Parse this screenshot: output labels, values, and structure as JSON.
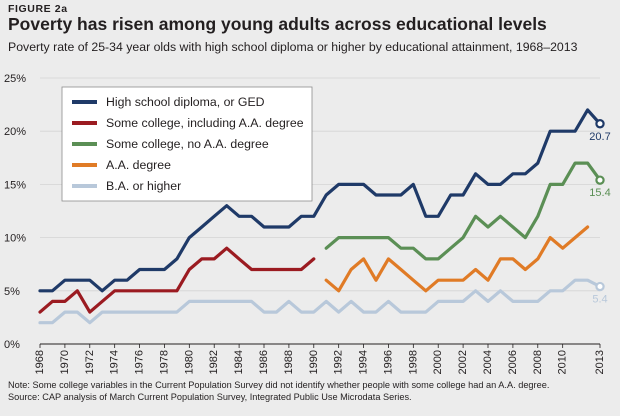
{
  "figure_label": "FIGURE 2a",
  "title": "Poverty has risen among young adults across educational levels",
  "subtitle": "Poverty rate of 25-34 year olds with high school diploma or higher by educational attainment, 1968–2013",
  "note": "Note: Some college variables in the Current Population Survey did not identify whether people with some college had an A.A. degree.",
  "source": "Source: CAP analysis of March Current Population Survey, Integrated Public Use Microdata Series.",
  "chart_data": {
    "type": "line",
    "title": "Poverty has risen among young adults across educational levels",
    "subtitle": "Poverty rate of 25-34 year olds with high school diploma or higher by educational attainment, 1968–2013",
    "xlabel": "",
    "ylabel": "",
    "xlim": [
      1968,
      2013
    ],
    "ylim": [
      0,
      25
    ],
    "x_ticks": [
      "1968",
      "1970",
      "1972",
      "1974",
      "1976",
      "1978",
      "1980",
      "1982",
      "1984",
      "1986",
      "1988",
      "1990",
      "1992",
      "1994",
      "1996",
      "1998",
      "2000",
      "2002",
      "2004",
      "2006",
      "2008",
      "2010",
      "2013"
    ],
    "y_ticks": [
      "0%",
      "5%",
      "10%",
      "15%",
      "20%",
      "25%"
    ],
    "grid": true,
    "legend_position": "top-left",
    "series": [
      {
        "name": "High school diploma, or GED",
        "color": "#1f3a68",
        "x": [
          1968,
          1969,
          1970,
          1971,
          1972,
          1973,
          1974,
          1975,
          1976,
          1977,
          1978,
          1979,
          1980,
          1981,
          1982,
          1983,
          1984,
          1985,
          1986,
          1987,
          1988,
          1989,
          1990,
          1991,
          1992,
          1993,
          1994,
          1995,
          1996,
          1997,
          1998,
          1999,
          2000,
          2001,
          2002,
          2003,
          2004,
          2005,
          2006,
          2007,
          2008,
          2009,
          2010,
          2011,
          2012,
          2013
        ],
        "values": [
          5,
          5,
          6,
          6,
          6,
          5,
          6,
          6,
          7,
          7,
          7,
          8,
          10,
          11,
          12,
          13,
          12,
          12,
          11,
          11,
          11,
          12,
          12,
          14,
          15,
          15,
          15,
          14,
          14,
          14,
          15,
          12,
          12,
          14,
          14,
          16,
          15,
          15,
          16,
          16,
          17,
          20,
          20,
          20,
          22,
          20.7
        ],
        "end_label": "20.7"
      },
      {
        "name": "Some college, including A.A. degree",
        "color": "#9b1b21",
        "x": [
          1968,
          1969,
          1970,
          1971,
          1972,
          1973,
          1974,
          1975,
          1976,
          1977,
          1978,
          1979,
          1980,
          1981,
          1982,
          1983,
          1984,
          1985,
          1986,
          1987,
          1988,
          1989,
          1990
        ],
        "values": [
          3,
          4,
          4,
          5,
          3,
          4,
          5,
          5,
          5,
          5,
          5,
          5,
          7,
          8,
          8,
          9,
          8,
          7,
          7,
          7,
          7,
          7,
          8
        ]
      },
      {
        "name": "Some college, no A.A. degree",
        "color": "#5b8f55",
        "x": [
          1991,
          1992,
          1993,
          1994,
          1995,
          1996,
          1997,
          1998,
          1999,
          2000,
          2001,
          2002,
          2003,
          2004,
          2005,
          2006,
          2007,
          2008,
          2009,
          2010,
          2011,
          2012,
          2013
        ],
        "values": [
          9,
          10,
          10,
          10,
          10,
          10,
          9,
          9,
          8,
          8,
          9,
          10,
          12,
          11,
          12,
          11,
          10,
          12,
          15,
          15,
          17,
          17,
          15.4
        ],
        "end_label": "15.4"
      },
      {
        "name": "A.A. degree",
        "color": "#e07b26",
        "x": [
          1991,
          1992,
          1993,
          1994,
          1995,
          1996,
          1997,
          1998,
          1999,
          2000,
          2001,
          2002,
          2003,
          2004,
          2005,
          2006,
          2007,
          2008,
          2009,
          2010,
          2011,
          2012
        ],
        "values": [
          6,
          5,
          7,
          8,
          6,
          8,
          7,
          6,
          5,
          6,
          6,
          6,
          7,
          6,
          8,
          8,
          7,
          8,
          10,
          9,
          10,
          11
        ]
      },
      {
        "name": "B.A. or higher",
        "color": "#b8c8da",
        "x": [
          1968,
          1969,
          1970,
          1971,
          1972,
          1973,
          1974,
          1975,
          1976,
          1977,
          1978,
          1979,
          1980,
          1981,
          1982,
          1983,
          1984,
          1985,
          1986,
          1987,
          1988,
          1989,
          1990,
          1991,
          1992,
          1993,
          1994,
          1995,
          1996,
          1997,
          1998,
          1999,
          2000,
          2001,
          2002,
          2003,
          2004,
          2005,
          2006,
          2007,
          2008,
          2009,
          2010,
          2011,
          2012,
          2013
        ],
        "values": [
          2,
          2,
          3,
          3,
          2,
          3,
          3,
          3,
          3,
          3,
          3,
          3,
          4,
          4,
          4,
          4,
          4,
          4,
          3,
          3,
          4,
          3,
          3,
          4,
          3,
          4,
          3,
          3,
          4,
          3,
          3,
          3,
          4,
          4,
          4,
          5,
          4,
          5,
          4,
          4,
          4,
          5,
          5,
          6,
          6,
          5.4
        ],
        "end_label": "5.4"
      }
    ]
  }
}
